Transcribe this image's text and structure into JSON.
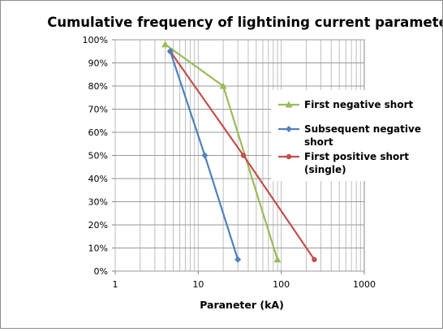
{
  "chart_data": {
    "type": "line",
    "title": "Cumulative frequency of lightining current parameters",
    "xlabel": "Paraneter (kA)",
    "ylabel": "",
    "x_scale": "log",
    "xlim": [
      1,
      1000
    ],
    "ylim": [
      0,
      100
    ],
    "x_ticks": [
      "1",
      "10",
      "100",
      "1000"
    ],
    "y_ticks": [
      "0%",
      "10%",
      "20%",
      "30%",
      "40%",
      "50%",
      "60%",
      "70%",
      "80%",
      "90%",
      "100%"
    ],
    "grid": true,
    "legend_position": "right",
    "series": [
      {
        "name_lines": [
          "First negative short"
        ],
        "color": "#9bbb59",
        "marker": "triangle",
        "x": [
          4,
          20,
          90
        ],
        "y": [
          98,
          80,
          5
        ]
      },
      {
        "name_lines": [
          "Subsequent negative",
          "short"
        ],
        "color": "#4f81bd",
        "marker": "diamond",
        "x": [
          4.6,
          12,
          30
        ],
        "y": [
          95,
          50,
          5
        ]
      },
      {
        "name_lines": [
          "First positive short",
          "(single)"
        ],
        "color": "#c0504d",
        "marker": "circle",
        "x": [
          4.6,
          35,
          250
        ],
        "y": [
          95,
          50,
          5
        ]
      }
    ]
  }
}
